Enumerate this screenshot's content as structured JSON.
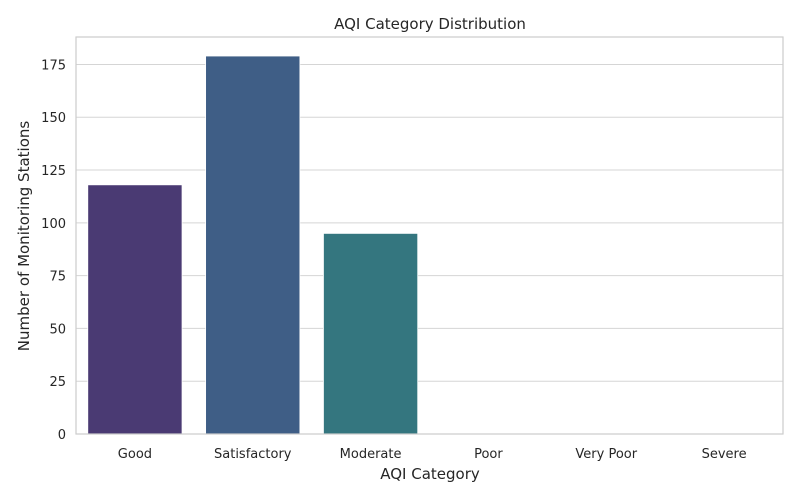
{
  "chart_data": {
    "type": "bar",
    "title": "AQI Category Distribution",
    "xlabel": "AQI Category",
    "ylabel": "Number of Monitoring Stations",
    "categories": [
      "Good",
      "Satisfactory",
      "Moderate",
      "Poor",
      "Very Poor",
      "Severe"
    ],
    "values": [
      118,
      179,
      95,
      0,
      0,
      0
    ],
    "colors": [
      "#4a3a73",
      "#3f5e86",
      "#34767f",
      "#2a8a7a",
      "#3aa36a",
      "#7ac25a"
    ],
    "ylim": [
      0,
      188
    ],
    "yticks": [
      0,
      25,
      50,
      75,
      100,
      125,
      150,
      175
    ],
    "grid": "horizontal",
    "legend": "none"
  }
}
